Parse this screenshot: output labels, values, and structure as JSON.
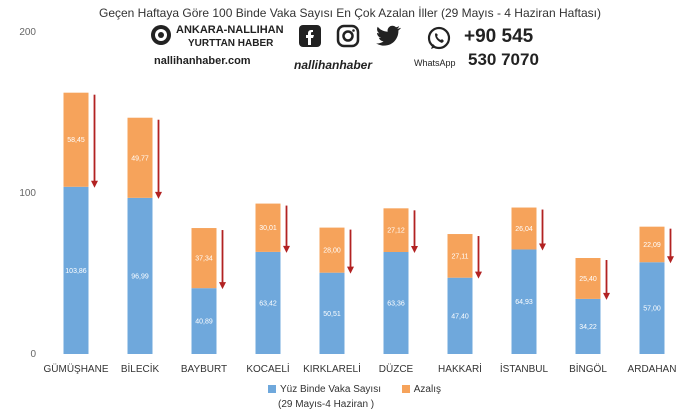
{
  "title": "Geçen Haftaya Göre 100 Binde Vaka Sayısı En Çok Azalan İller (29 Mayıs - 4 Haziran Haftası)",
  "watermark": {
    "brand_line1": "ANKARA-NALLIHAN",
    "brand_line2": "YURTTAN HABER",
    "site": "nallihanhaber.com",
    "handle": "nallihanhaber",
    "phone_line1": "+90 545",
    "phone_line2": "530 7070",
    "whatsapp": "WhatsApp",
    "icons": [
      "facebook-icon",
      "instagram-icon",
      "twitter-icon",
      "whatsapp-icon"
    ]
  },
  "chart_data": {
    "type": "bar",
    "stacked": true,
    "categories": [
      "GÜMÜŞHANE",
      "BİLECİK",
      "BAYBURT",
      "KOCAELİ",
      "KIRKLARELİ",
      "DÜZCE",
      "HAKKARİ",
      "İSTANBUL",
      "BİNGÖL",
      "ARDAHAN"
    ],
    "series": [
      {
        "name": "Yüz Binde Vaka Sayısı",
        "values": [
          103.86,
          96.99,
          40.89,
          63.42,
          50.51,
          63.36,
          47.4,
          64.93,
          34.22,
          57.0
        ],
        "labels": [
          "103,86",
          "96,99",
          "40,89",
          "63,42",
          "50,51",
          "63,36",
          "47,40",
          "64,93",
          "34,22",
          "57,00"
        ],
        "color": "#6FA8DC"
      },
      {
        "name": "Azalış",
        "values": [
          58.45,
          49.77,
          37.34,
          30.01,
          28.0,
          27.12,
          27.11,
          26.04,
          25.4,
          22.09
        ],
        "labels": [
          "58,45",
          "49,77",
          "37,34",
          "30,01",
          "28,00",
          "27,12",
          "27,11",
          "26,04",
          "25,40",
          "22,09"
        ],
        "color": "#F6A35B"
      }
    ],
    "legend_note": "(29 Mayıs-4 Haziran )",
    "yticks": [
      0,
      100,
      200
    ],
    "ylim": [
      0,
      200
    ],
    "grid": false,
    "legend_position": "bottom",
    "arrow_color": "#B22222"
  }
}
